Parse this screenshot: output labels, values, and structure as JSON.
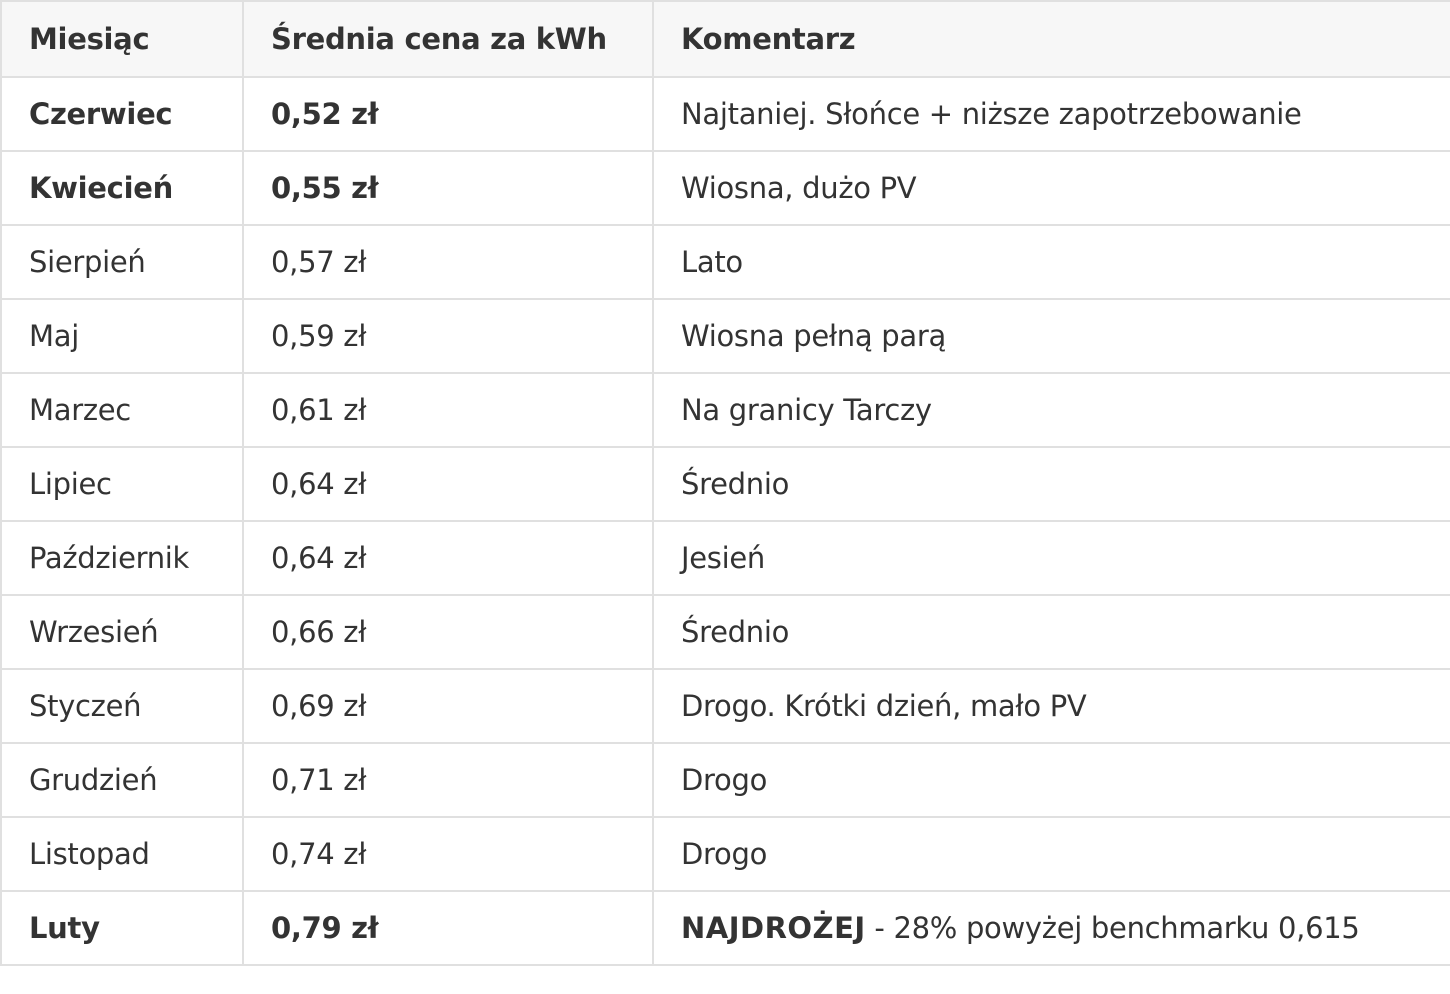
{
  "table": {
    "header": [
      "Miesiąc",
      "Średnia cena za kWh",
      "Komentarz"
    ],
    "rows": [
      {
        "bold": true,
        "cells": [
          "Czerwiec",
          "0,52 zł",
          "Najtaniej. Słońce + niższe zapotrzebowanie"
        ]
      },
      {
        "bold": true,
        "cells": [
          "Kwiecień",
          "0,55 zł",
          "Wiosna, dużo PV"
        ]
      },
      {
        "bold": false,
        "cells": [
          "Sierpień",
          "0,57 zł",
          "Lato"
        ]
      },
      {
        "bold": false,
        "cells": [
          "Maj",
          "0,59 zł",
          "Wiosna pełną parą"
        ]
      },
      {
        "bold": false,
        "cells": [
          "Marzec",
          "0,61 zł",
          "Na granicy Tarczy"
        ]
      },
      {
        "bold": false,
        "cells": [
          "Lipiec",
          "0,64 zł",
          "Średnio"
        ]
      },
      {
        "bold": false,
        "cells": [
          "Październik",
          "0,64 zł",
          "Jesień"
        ]
      },
      {
        "bold": false,
        "cells": [
          "Wrzesień",
          "0,66 zł",
          "Średnio"
        ]
      },
      {
        "bold": false,
        "cells": [
          "Styczeń",
          "0,69 zł",
          "Drogo. Krótki dzień, mało PV"
        ]
      },
      {
        "bold": false,
        "cells": [
          "Grudzień",
          "0,71 zł",
          "Drogo"
        ]
      },
      {
        "bold": false,
        "cells": [
          "Listopad",
          "0,74 zł",
          "Drogo"
        ]
      },
      {
        "bold": true,
        "cells": [
          "Luty",
          "0,79 zł",
          {
            "emphasis": "NAJDROŻEJ",
            "text": "- 28% powyżej benchmarku 0,615"
          }
        ]
      }
    ]
  }
}
